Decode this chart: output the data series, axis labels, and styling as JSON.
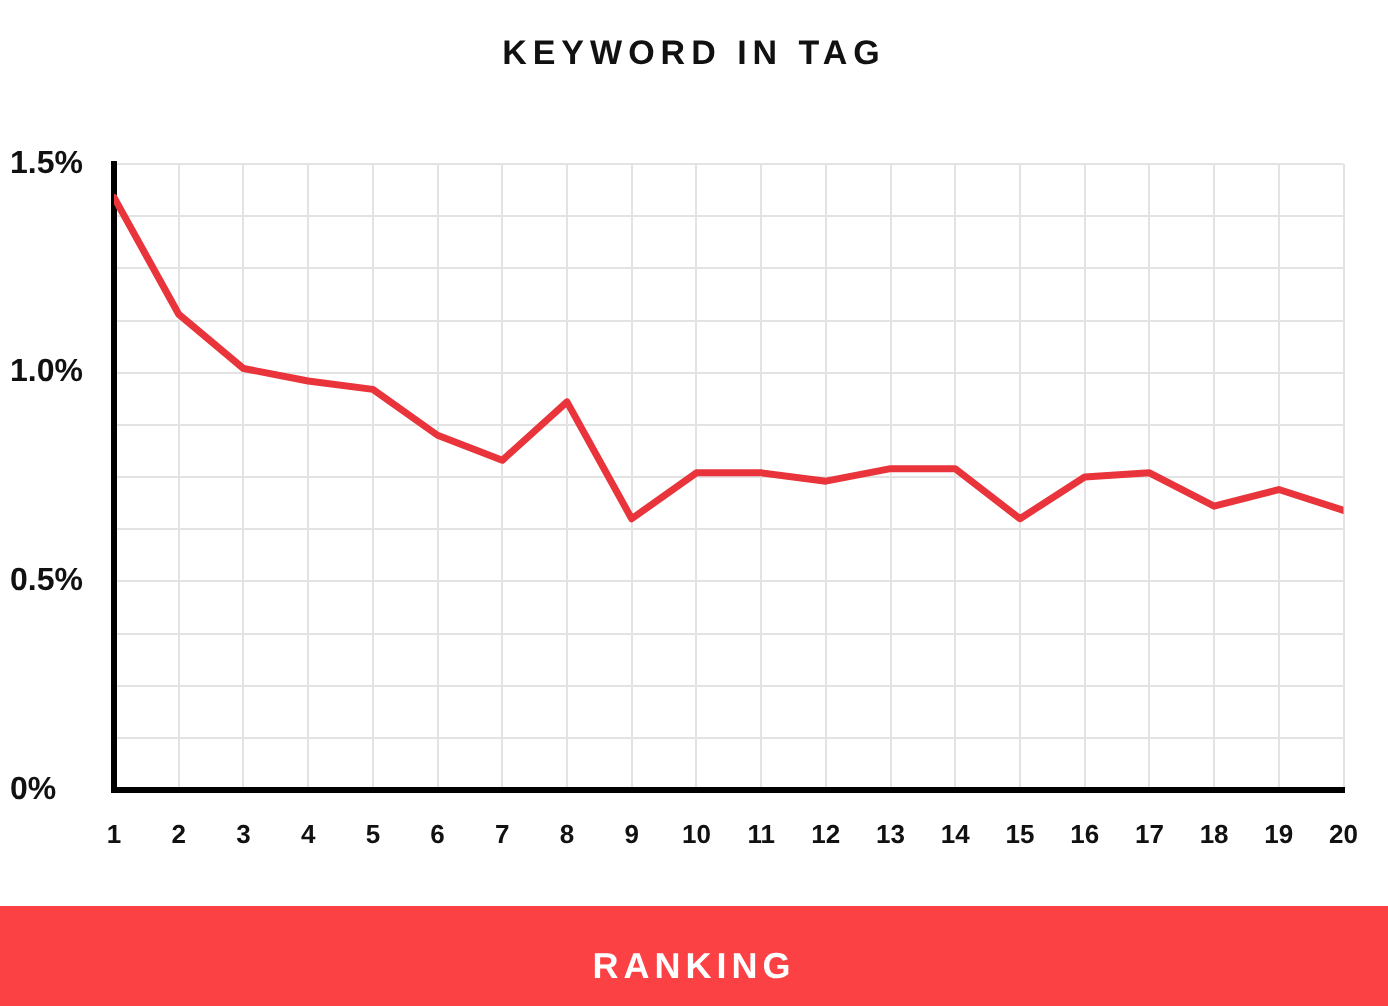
{
  "chart_data": {
    "type": "line",
    "title": "KEYWORD IN TAG",
    "xlabel": "RANKING",
    "x": [
      1,
      2,
      3,
      4,
      5,
      6,
      7,
      8,
      9,
      10,
      11,
      12,
      13,
      14,
      15,
      16,
      17,
      18,
      19,
      20
    ],
    "series": [
      {
        "color": "#e8343a",
        "values": [
          1.42,
          1.14,
          1.01,
          0.98,
          0.96,
          0.85,
          0.79,
          0.93,
          0.65,
          0.76,
          0.76,
          0.74,
          0.77,
          0.77,
          0.65,
          0.75,
          0.76,
          0.68,
          0.72,
          0.67
        ]
      }
    ],
    "xlim": [
      1,
      20
    ],
    "xticks": [
      1,
      2,
      3,
      4,
      5,
      6,
      7,
      8,
      9,
      10,
      11,
      12,
      13,
      14,
      15,
      16,
      17,
      18,
      19,
      20
    ],
    "ylim": [
      0,
      1.5
    ],
    "yticks": [
      {
        "value": 0,
        "label": "0%"
      },
      {
        "value": 0.125,
        "label": null
      },
      {
        "value": 0.25,
        "label": null
      },
      {
        "value": 0.375,
        "label": null
      },
      {
        "value": 0.5,
        "label": "0.5%"
      },
      {
        "value": 0.625,
        "label": null
      },
      {
        "value": 0.75,
        "label": null
      },
      {
        "value": 0.875,
        "label": null
      },
      {
        "value": 1,
        "label": "1.0%"
      },
      {
        "value": 1.125,
        "label": null
      },
      {
        "value": 1.25,
        "label": null
      },
      {
        "value": 1.375,
        "label": null
      },
      {
        "value": 1.5,
        "label": "1.5%"
      }
    ],
    "grid": true
  }
}
